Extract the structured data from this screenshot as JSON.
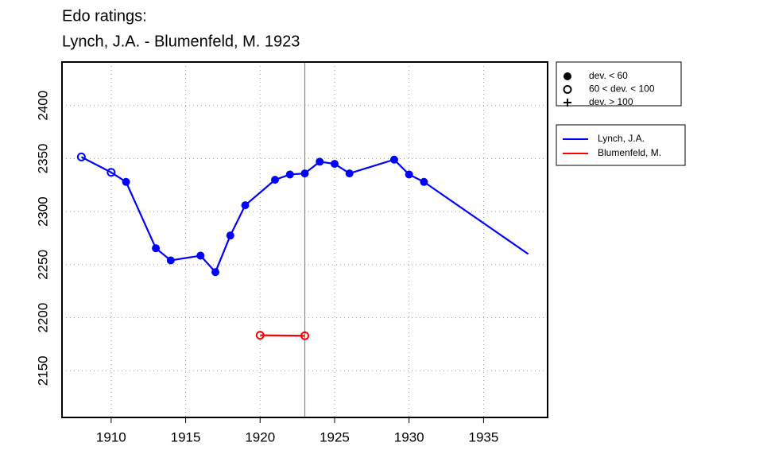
{
  "chart_data": {
    "type": "line",
    "title": "Edo ratings:",
    "subtitle": "Lynch, J.A. - Blumenfeld, M. 1923",
    "xlim": [
      1906.7,
      1939.3
    ],
    "ylim": [
      2106,
      2441
    ],
    "xticks": [
      1910,
      1915,
      1920,
      1925,
      1930,
      1935
    ],
    "yticks": [
      2150,
      2200,
      2250,
      2300,
      2350,
      2400
    ],
    "grid": true,
    "vline": 1923,
    "vline_color": "#888888",
    "marker_legend": [
      {
        "label": "dev. < 60",
        "marker": "filled"
      },
      {
        "label": "60 < dev. < 100",
        "marker": "open"
      },
      {
        "label": "dev. > 100",
        "marker": "plus"
      }
    ],
    "legend": "right",
    "series": [
      {
        "name": "Lynch, J.A.",
        "color": "#0000ff",
        "x": [
          1908,
          1910,
          1911,
          1913,
          1914,
          1916,
          1917,
          1918,
          1919,
          1921,
          1922,
          1923,
          1924,
          1925,
          1926,
          1929,
          1930,
          1931,
          1938
        ],
        "values": [
          2351.5,
          2337,
          2328,
          2265.5,
          2254,
          2258.5,
          2243,
          2277.5,
          2306,
          2330,
          2335,
          2336,
          2347,
          2345,
          2336,
          2349,
          2335,
          2328,
          2260
        ],
        "markers": [
          "open",
          "open",
          "filled",
          "filled",
          "filled",
          "filled",
          "filled",
          "filled",
          "filled",
          "filled",
          "filled",
          "filled",
          "filled",
          "filled",
          "filled",
          "filled",
          "filled",
          "filled",
          null
        ]
      },
      {
        "name": "Blumenfeld, M.",
        "color": "#ff0000",
        "x": [
          1920,
          1923
        ],
        "values": [
          2183.5,
          2183
        ],
        "markers": [
          "open",
          "open"
        ]
      }
    ]
  }
}
